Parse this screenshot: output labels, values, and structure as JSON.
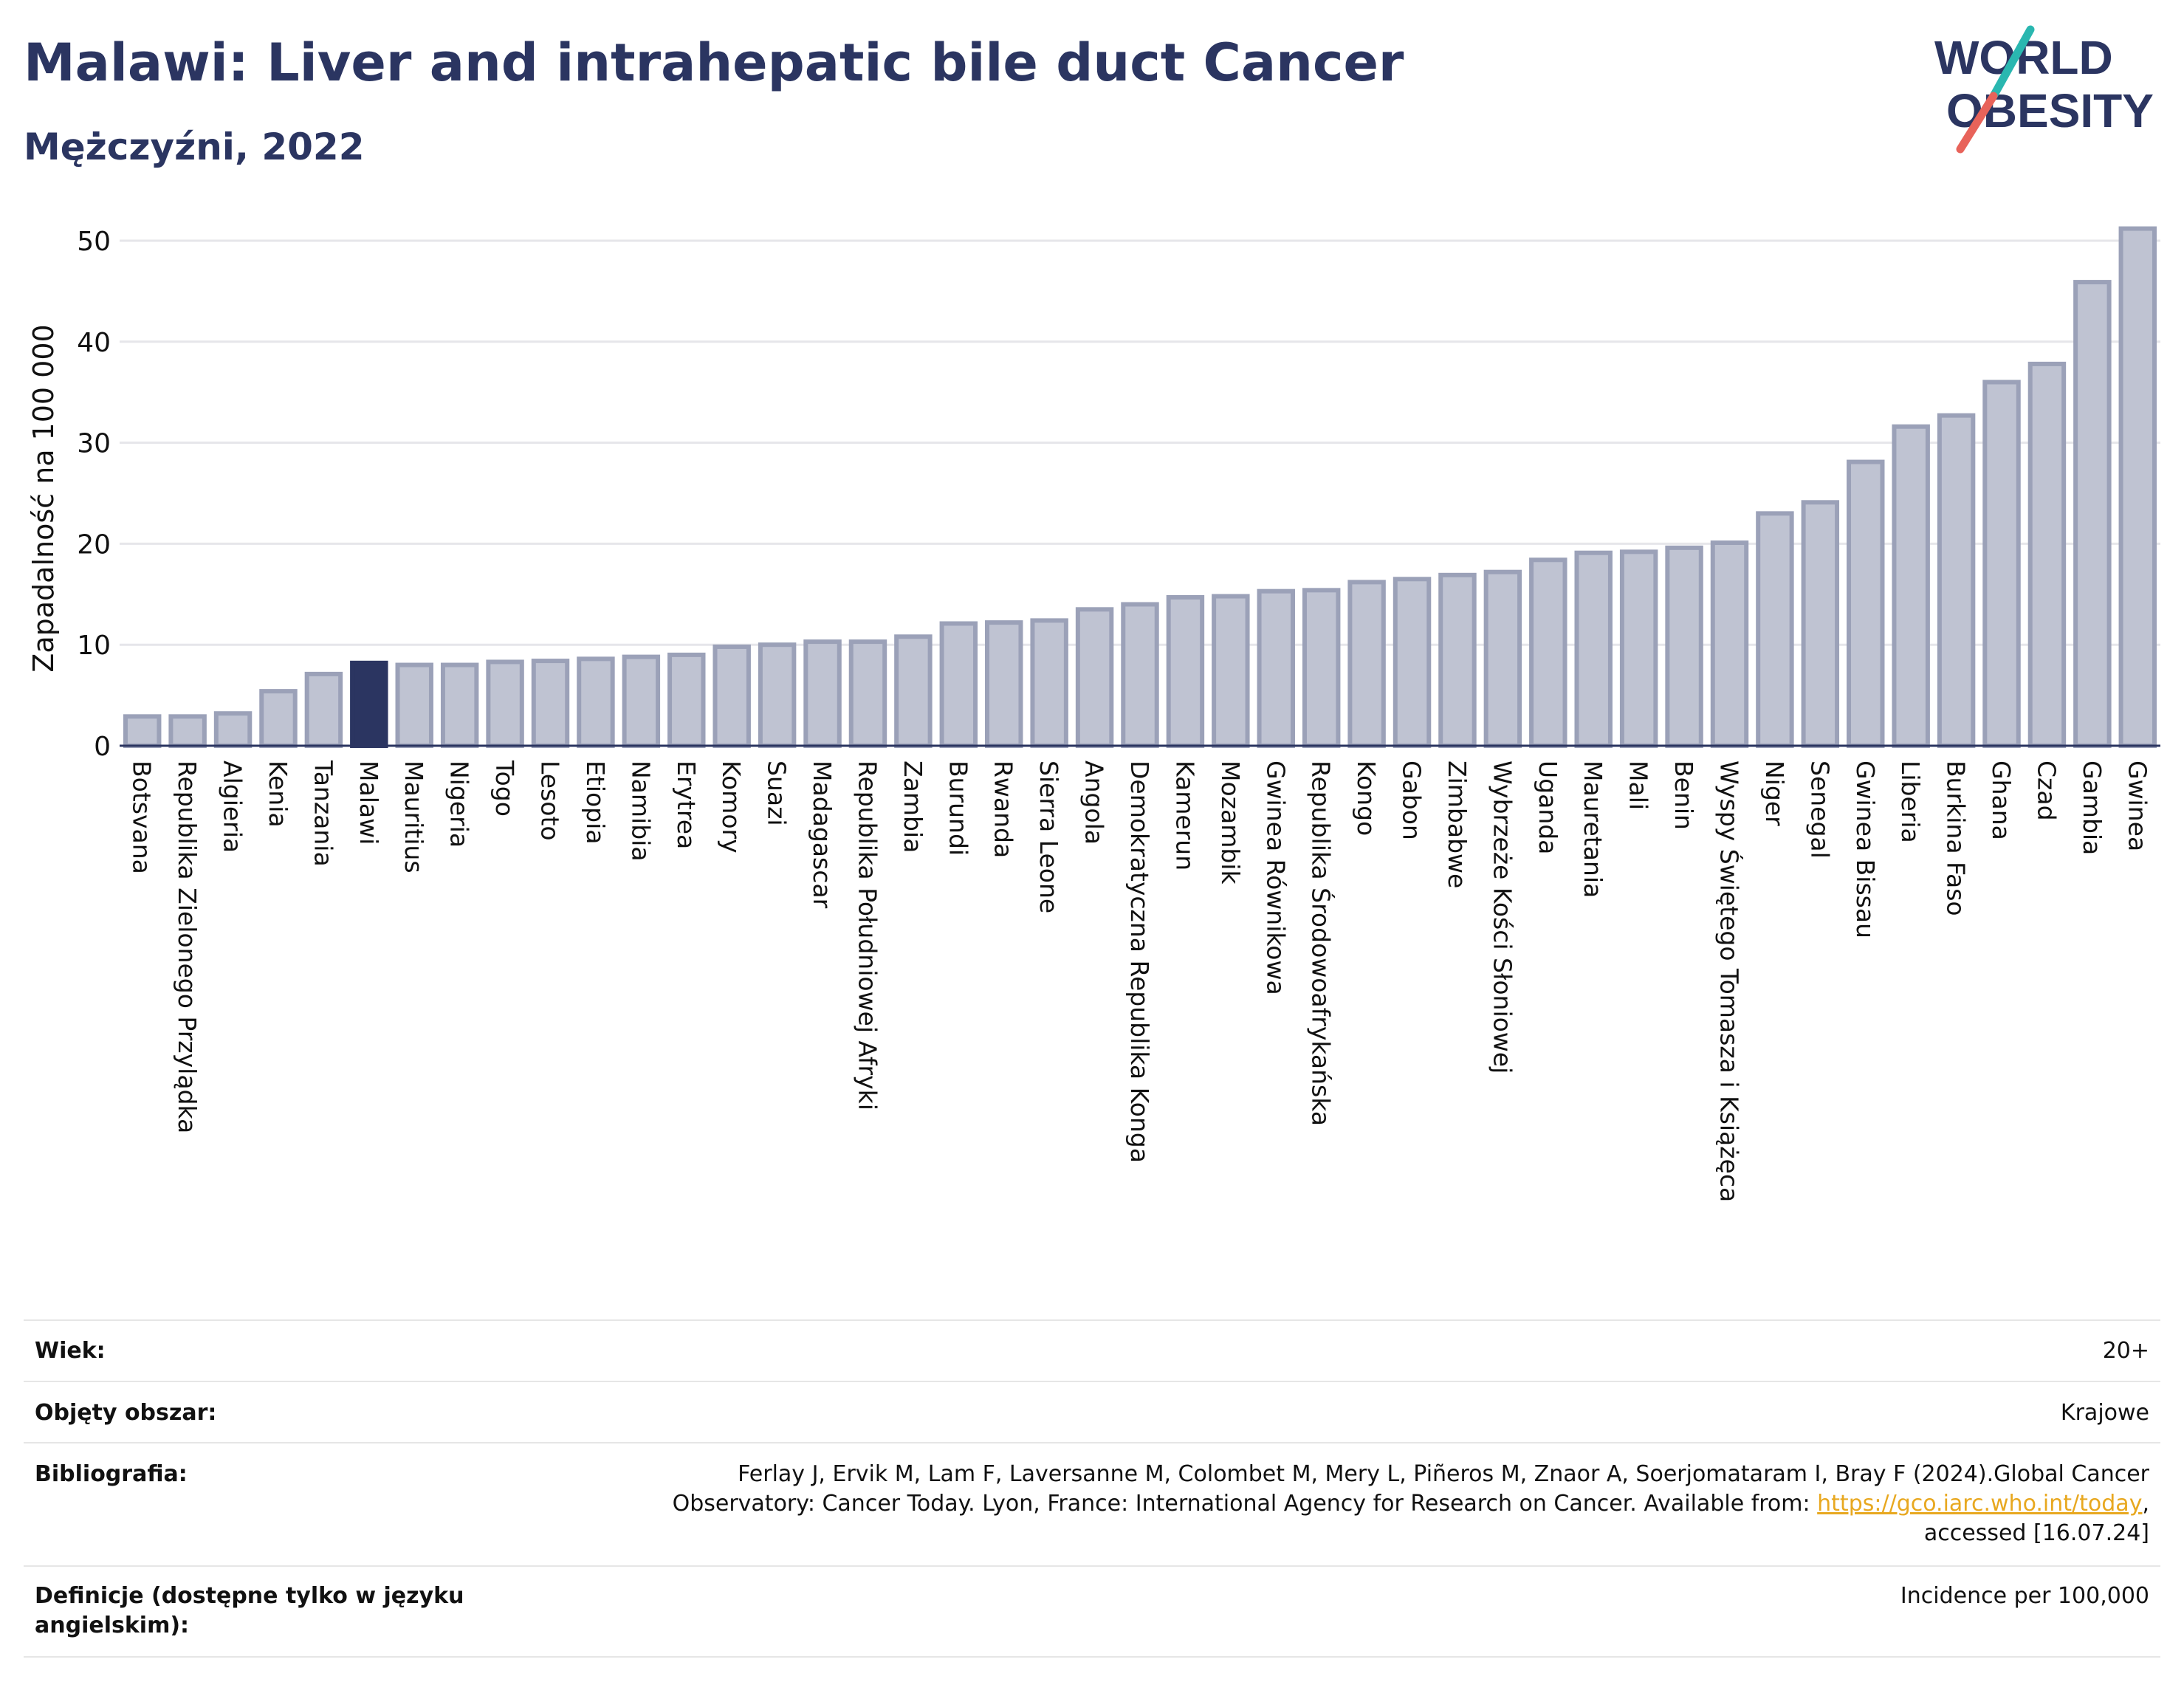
{
  "title": "Malawi: Liver and intrahepatic bile duct Cancer",
  "subtitle": "Mężczyźni, 2022",
  "logo": {
    "line1": "WORLD",
    "line2": "OBESITY"
  },
  "colors": {
    "bar": "#bfc3d2",
    "bar_stroke": "#9ba1b8",
    "highlight": "#2b3561",
    "accent_teal": "#2ab7b0",
    "accent_red": "#e8635a"
  },
  "chart_data": {
    "type": "bar",
    "ylabel": "Zapadalność na 100 000",
    "ylim": [
      0,
      52
    ],
    "yticks": [
      0,
      10,
      20,
      30,
      40,
      50
    ],
    "highlight": "Malawi",
    "grid": true,
    "categories": [
      "Botsvana",
      "Republika Zielonego Przylądka",
      "Algieria",
      "Kenia",
      "Tanzania",
      "Malawi",
      "Mauritius",
      "Nigeria",
      "Togo",
      "Lesoto",
      "Etiopia",
      "Namibia",
      "Erytrea",
      "Komory",
      "Suazi",
      "Madagascar",
      "Republika Południowej Afryki",
      "Zambia",
      "Burundi",
      "Rwanda",
      "Sierra Leone",
      "Angola",
      "Demokratyczna Republika Konga",
      "Kamerun",
      "Mozambik",
      "Gwinea Równikowa",
      "Republika Środowoafrykańska",
      "Kongo",
      "Gabon",
      "Zimbabwe",
      "Wybrzeże Kości Słoniowej",
      "Uganda",
      "Mauretania",
      "Mali",
      "Benin",
      "Wyspy Świętego Tomasza i Książęca",
      "Niger",
      "Senegal",
      "Gwinea Bissau",
      "Liberia",
      "Burkina Faso",
      "Ghana",
      "Czad",
      "Gambia",
      "Gwinea"
    ],
    "values": [
      2.9,
      2.9,
      3.2,
      5.4,
      7.1,
      8.2,
      8.0,
      8.0,
      8.3,
      8.4,
      8.6,
      8.8,
      9.0,
      9.8,
      10.0,
      10.3,
      10.3,
      10.8,
      12.1,
      12.2,
      12.4,
      13.5,
      14.0,
      14.7,
      14.8,
      15.3,
      15.4,
      16.2,
      16.5,
      16.9,
      17.2,
      18.4,
      19.1,
      19.2,
      19.6,
      20.1,
      23.0,
      24.1,
      28.1,
      31.6,
      32.7,
      36.0,
      37.8,
      45.9,
      51.2
    ]
  },
  "meta": {
    "age_label": "Wiek:",
    "age_value": "20+",
    "area_label": "Objęty obszar:",
    "area_value": "Krajowe",
    "bib_label": "Bibliografia:",
    "bib_line1": "Ferlay J, Ervik M, Lam F, Laversanne M, Colombet M, Mery L, Piñeros M, Znaor A, Soerjomataram I, Bray F (2024).Global Cancer",
    "bib_line2_pre": "Observatory: Cancer Today. Lyon, France: International Agency for Research on Cancer. Available from: ",
    "bib_link": "https://gco.iarc.who.int/today",
    "bib_line2_post": ",",
    "bib_line3": "accessed [16.07.24]",
    "def_label": "Definicje (dostępne tylko w języku angielskim):",
    "def_value": "Incidence per 100,000"
  }
}
